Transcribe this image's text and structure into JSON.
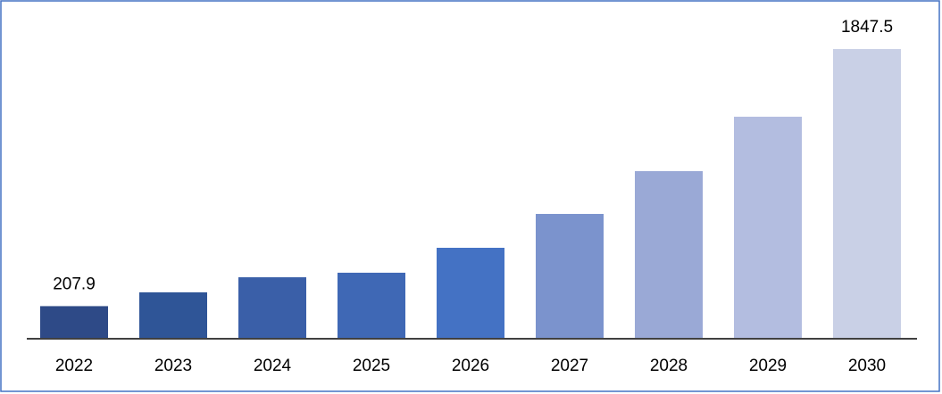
{
  "chart_data": {
    "type": "bar",
    "categories": [
      "2022",
      "2023",
      "2024",
      "2025",
      "2026",
      "2027",
      "2028",
      "2029",
      "2030"
    ],
    "values": [
      207.9,
      296,
      392,
      421,
      580,
      796,
      1069,
      1416,
      1847.5
    ],
    "value_labels": [
      "207.9",
      null,
      null,
      null,
      null,
      null,
      null,
      null,
      "1847.5"
    ],
    "colors": [
      "#2e4a87",
      "#2f5597",
      "#3a5fa8",
      "#3f68b5",
      "#4472c4",
      "#7b93cd",
      "#9aa9d6",
      "#b3bde0",
      "#c9d0e6"
    ],
    "ylim": [
      0,
      2000
    ]
  }
}
